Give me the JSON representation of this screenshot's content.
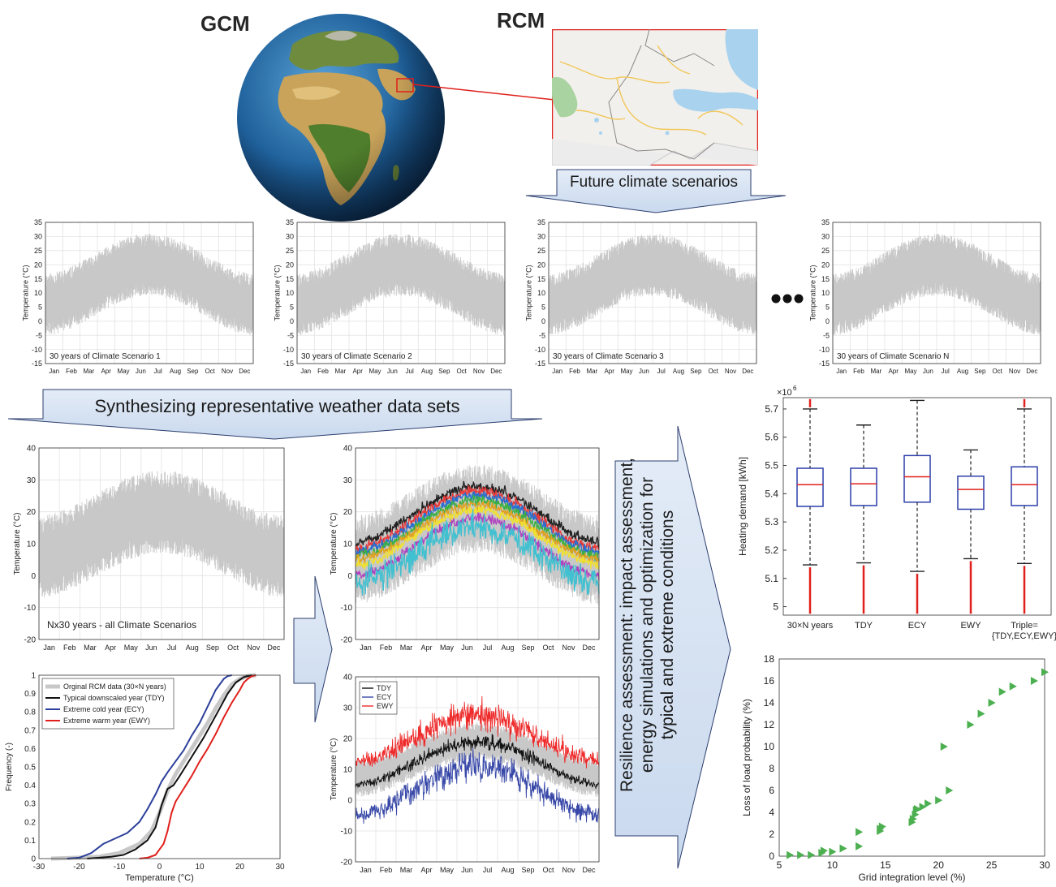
{
  "header": {
    "gcm_label": "GCM",
    "rcm_label": "RCM",
    "future_banner": "Future climate scenarios",
    "synth_banner": "Synthesizing representative weather data sets",
    "resilience_banner": [
      "Resilience assessment: impact assessment,",
      "energy simulations and optimization for",
      "typical and extreme conditions"
    ]
  },
  "months": [
    "Jan",
    "Feb",
    "Mar",
    "Apr",
    "May",
    "Jun",
    "Jul",
    "Aug",
    "Sep",
    "Oct",
    "Nov",
    "Dec"
  ],
  "chart_data": [
    {
      "id": "scenario1",
      "type": "area",
      "title": "",
      "annotation": "30 years of Climate Scenario 1",
      "ylabel": "Temperature (°C)",
      "ylim": [
        -15,
        35
      ],
      "yticks": [
        -15,
        -10,
        -5,
        0,
        5,
        10,
        15,
        20,
        25,
        30,
        35
      ],
      "x": "Jan–Dec",
      "grid": true
    },
    {
      "id": "scenario2",
      "type": "area",
      "title": "",
      "annotation": "30 years of Climate Scenario 2",
      "ylabel": "Temperature (°C)",
      "ylim": [
        -15,
        35
      ],
      "yticks": [
        -15,
        -10,
        -5,
        0,
        5,
        10,
        15,
        20,
        25,
        30,
        35
      ],
      "x": "Jan–Dec",
      "grid": true
    },
    {
      "id": "scenario3",
      "type": "area",
      "title": "",
      "annotation": "30 years of Climate Scenario 3",
      "ylabel": "Temperature (°C)",
      "ylim": [
        -15,
        35
      ],
      "yticks": [
        -15,
        -10,
        -5,
        0,
        5,
        10,
        15,
        20,
        25,
        30,
        35
      ],
      "x": "Jan–Dec",
      "grid": true
    },
    {
      "id": "scenarioN",
      "type": "area",
      "title": "",
      "annotation": "30 years of Climate Scenario N",
      "ylabel": "Temperature (°C)",
      "ylim": [
        -15,
        35
      ],
      "yticks": [
        -15,
        -10,
        -5,
        0,
        5,
        10,
        15,
        20,
        25,
        30,
        35
      ],
      "x": "Jan–Dec",
      "grid": true
    },
    {
      "id": "all",
      "type": "area",
      "title": "",
      "annotation": "Nx30 years - all Climate Scenarios",
      "ylabel": "Temperature (°C)",
      "ylim": [
        -20,
        40
      ],
      "yticks": [
        -20,
        -10,
        0,
        10,
        20,
        30,
        40
      ],
      "x": "Jan–Dec",
      "grid": true
    },
    {
      "id": "multi",
      "type": "line",
      "title": "",
      "ylabel": "Temperature (°C)",
      "ylim": [
        -20,
        40
      ],
      "yticks": [
        -20,
        -10,
        0,
        10,
        20,
        30,
        40
      ],
      "x": "Jan–Dec",
      "grid": true,
      "series": [
        {
          "color": "#222222",
          "winter": 10.5,
          "summer": 28
        },
        {
          "color": "#e83a3a",
          "winter": 8.5,
          "summer": 26.5
        },
        {
          "color": "#2a6fd0",
          "winter": 7.5,
          "summer": 25
        },
        {
          "color": "#3cb043",
          "winter": 6,
          "summer": 23.5
        },
        {
          "color": "#e0a020",
          "winter": 5,
          "summer": 22
        },
        {
          "color": "#b040c0",
          "winter": 0,
          "summer": 18
        },
        {
          "color": "#f0e030",
          "winter": 3.5,
          "summer": 20.5
        },
        {
          "color": "#40c0d0",
          "winter": -2,
          "summer": 15
        }
      ]
    },
    {
      "id": "cdf",
      "type": "line",
      "title": "",
      "xlabel": "Temperature (°C)",
      "ylabel": "Frequency (-)",
      "xlim": [
        -30,
        30
      ],
      "ylim": [
        0,
        1
      ],
      "xticks": [
        -30,
        -20,
        -10,
        0,
        10,
        20,
        30
      ],
      "yticks": [
        0,
        0.1,
        0.2,
        0.3,
        0.4,
        0.5,
        0.6,
        0.7,
        0.8,
        0.9,
        1
      ],
      "legend_position": "top-left",
      "series": [
        {
          "name": "Orginal RCM data (30×N years)",
          "color": "#c8c8c8",
          "x": [
            -27,
            -20,
            -15,
            -10,
            -5,
            -2,
            0,
            2,
            4,
            6,
            8,
            10,
            12,
            14,
            16,
            18,
            20,
            22,
            24
          ],
          "y": [
            0,
            0.005,
            0.01,
            0.03,
            0.08,
            0.15,
            0.25,
            0.37,
            0.46,
            0.53,
            0.6,
            0.67,
            0.74,
            0.82,
            0.89,
            0.95,
            0.98,
            0.995,
            1
          ]
        },
        {
          "name": "Typical downscaled year (TDY)",
          "color": "#111111",
          "x": [
            -18,
            -15,
            -12,
            -9,
            -6,
            -3,
            -1,
            0.5,
            2,
            3.5,
            5,
            7,
            9,
            11,
            13,
            15,
            17,
            19,
            21,
            23
          ],
          "y": [
            0,
            0.005,
            0.01,
            0.02,
            0.05,
            0.1,
            0.17,
            0.29,
            0.38,
            0.4,
            0.45,
            0.52,
            0.59,
            0.66,
            0.74,
            0.82,
            0.9,
            0.96,
            0.99,
            1
          ]
        },
        {
          "name": "Extreme cold year (ECY)",
          "color": "#2c3f9a",
          "x": [
            -23,
            -20,
            -17,
            -14,
            -11,
            -8,
            -5,
            -3,
            -1,
            0.5,
            2,
            4,
            6,
            8,
            10,
            12,
            14,
            16,
            17,
            18
          ],
          "y": [
            0,
            0.005,
            0.03,
            0.08,
            0.11,
            0.14,
            0.2,
            0.27,
            0.35,
            0.42,
            0.47,
            0.53,
            0.59,
            0.67,
            0.74,
            0.83,
            0.92,
            0.98,
            0.995,
            1
          ]
        },
        {
          "name": "Extreme warm year (EWY)",
          "color": "#e0201c",
          "x": [
            -5,
            -3,
            -1,
            0,
            1,
            2,
            3,
            4,
            6,
            8,
            10,
            12,
            14,
            16,
            18,
            20,
            21,
            22,
            23,
            24
          ],
          "y": [
            0,
            0.005,
            0.02,
            0.05,
            0.08,
            0.15,
            0.25,
            0.31,
            0.38,
            0.45,
            0.53,
            0.6,
            0.68,
            0.77,
            0.85,
            0.92,
            0.96,
            0.98,
            0.995,
            1
          ]
        }
      ]
    },
    {
      "id": "tdy",
      "type": "line",
      "title": "",
      "ylabel": "Temperature (°C)",
      "ylim": [
        -20,
        40
      ],
      "yticks": [
        -20,
        -10,
        0,
        10,
        20,
        30,
        40
      ],
      "x": "Jan–Dec",
      "grid": true,
      "legend_position": "top-left",
      "series": [
        {
          "name": "TDY",
          "color": "#111111",
          "winter": 5,
          "summer": 19
        },
        {
          "name": "ECY",
          "color": "#3848a8",
          "winter": -5,
          "summer": 11
        },
        {
          "name": "EWY",
          "color": "#ee2a2a",
          "winter": 13,
          "summer": 27
        }
      ]
    },
    {
      "id": "box",
      "type": "box",
      "title": "",
      "ylabel": "Heating demand [kWh]",
      "multiplier": "×10",
      "multiplier_exp": "6",
      "ylim": [
        4.97,
        5.74
      ],
      "yticks": [
        5,
        5.1,
        5.2,
        5.3,
        5.4,
        5.5,
        5.6,
        5.7
      ],
      "categories": [
        "30×N years",
        "TDY",
        "ECY",
        "EWY",
        "Triple=\n{TDY,ECY,EWY}"
      ],
      "boxes": [
        {
          "q1": 5.355,
          "median": 5.432,
          "q3": 5.49,
          "whisker_low": 5.148,
          "whisker_high": 5.7,
          "outlier_low": 4.975,
          "outlier_high": 5.735
        },
        {
          "q1": 5.358,
          "median": 5.435,
          "q3": 5.49,
          "whisker_low": 5.155,
          "whisker_high": 5.643,
          "outlier_low": 4.975,
          "outlier_high": null
        },
        {
          "q1": 5.37,
          "median": 5.46,
          "q3": 5.535,
          "whisker_low": 5.125,
          "whisker_high": 5.73,
          "outlier_low": 4.975,
          "outlier_high": null
        },
        {
          "q1": 5.345,
          "median": 5.415,
          "q3": 5.462,
          "whisker_low": 5.17,
          "whisker_high": 5.555,
          "outlier_low": 4.975,
          "outlier_high": null
        },
        {
          "q1": 5.358,
          "median": 5.432,
          "q3": 5.495,
          "whisker_low": 5.153,
          "whisker_high": 5.7,
          "outlier_low": 4.975,
          "outlier_high": 5.735
        }
      ]
    },
    {
      "id": "lolp",
      "type": "scatter",
      "title": "",
      "xlabel": "Grid integration level (%)",
      "ylabel": "Loss of load probability (%)",
      "xlim": [
        5,
        30
      ],
      "ylim": [
        0,
        18
      ],
      "xticks": [
        5,
        10,
        15,
        20,
        25,
        30
      ],
      "yticks": [
        0,
        2,
        4,
        6,
        8,
        10,
        12,
        14,
        16,
        18
      ],
      "x": [
        6,
        7,
        8,
        9,
        9.2,
        10,
        11,
        12.5,
        12.5,
        14.5,
        14.5,
        14.7,
        17.5,
        17.6,
        17.8,
        17.9,
        18,
        18.5,
        19,
        20,
        20.5,
        21,
        23,
        24,
        25,
        26,
        27,
        29,
        30
      ],
      "y": [
        0.1,
        0.1,
        0.1,
        0.3,
        0.5,
        0.4,
        0.7,
        0.9,
        2.2,
        2.3,
        2.5,
        2.7,
        3.1,
        3.4,
        3.8,
        4.2,
        4.3,
        4.5,
        4.8,
        5.1,
        10,
        6,
        12,
        13,
        14,
        15,
        15.5,
        16,
        16.8
      ]
    }
  ]
}
